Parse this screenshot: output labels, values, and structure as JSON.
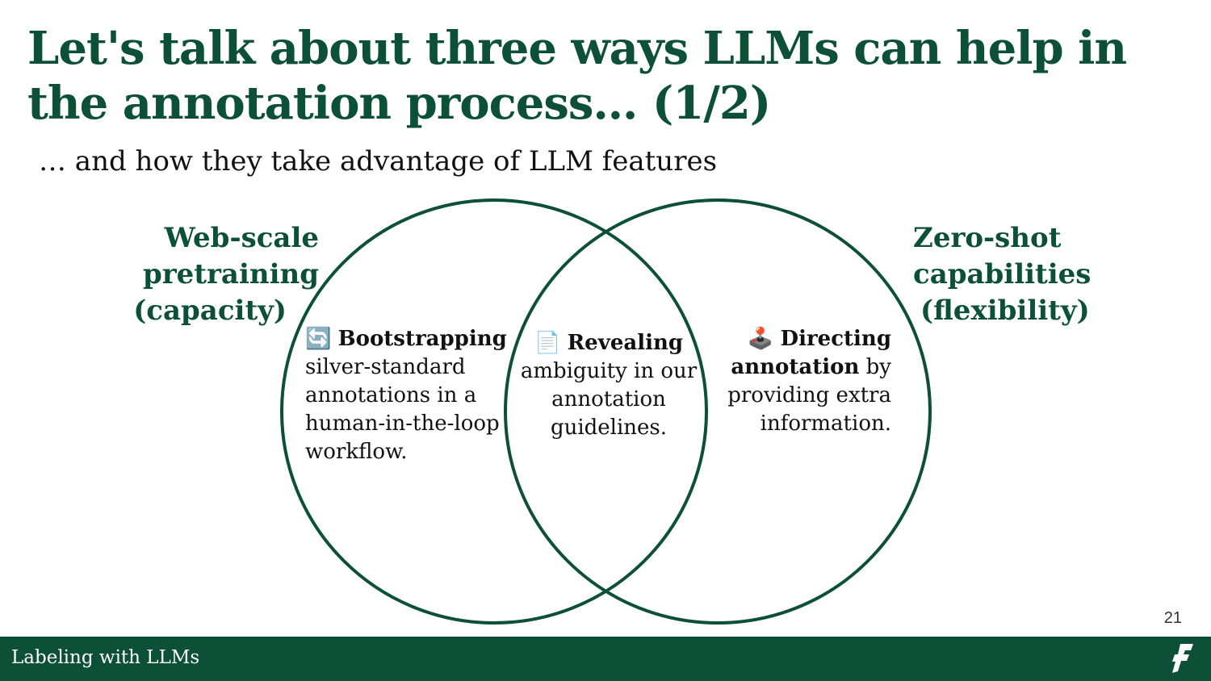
{
  "slide": {
    "title": "Let's talk about three ways LLMs can help in the annotation process… (1/2)",
    "subtitle": "… and how they take advantage of LLM features",
    "page_number": "21"
  },
  "venn": {
    "left_label": [
      "Web-scale",
      "pretraining",
      "(capacity)"
    ],
    "right_label": [
      "Zero-shot",
      "capabilities",
      "(flexibility)"
    ],
    "left_region": {
      "icon": "🔄",
      "bold": "Bootstrapping",
      "text": "silver-standard annotations in a human-in-the-loop workflow."
    },
    "center_region": {
      "icon": "📄",
      "bold": "Revealing",
      "text": "ambiguity in our annotation guidelines."
    },
    "right_region": {
      "icon": "🕹️",
      "bold": "Directing annotation",
      "text": "by providing extra information."
    }
  },
  "footer": {
    "label": "Labeling with LLMs"
  },
  "colors": {
    "brand_green": "#0b5037",
    "footer_background": "#0b5037"
  }
}
